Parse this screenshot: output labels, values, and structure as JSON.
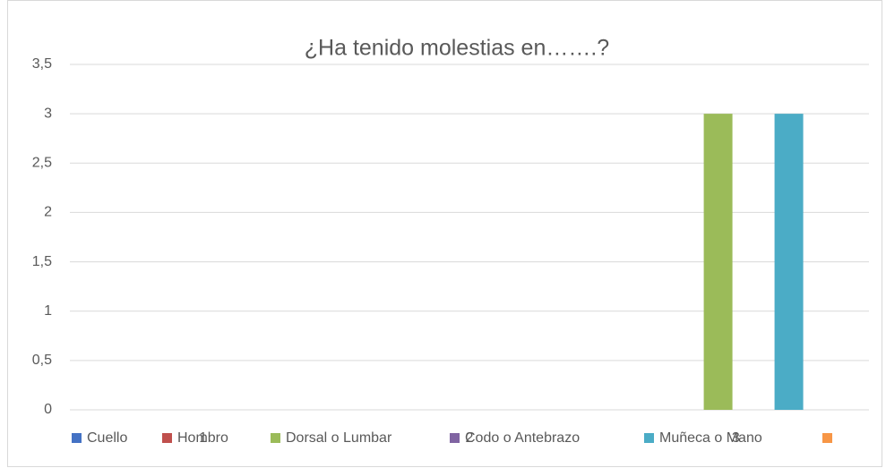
{
  "chart_data": {
    "type": "bar",
    "title": "¿Ha tenido molestias en…….?",
    "categories": [
      "1",
      "2",
      "3"
    ],
    "series": [
      {
        "name": "Cuello",
        "color": "#4472c4",
        "values": [
          0,
          0,
          0
        ]
      },
      {
        "name": "Hombro",
        "color": "#c0504d",
        "values": [
          0,
          0,
          0
        ]
      },
      {
        "name": "Dorsal o Lumbar",
        "color": "#9bbb59",
        "values": [
          0,
          0,
          3
        ]
      },
      {
        "name": "Codo o Antebrazo",
        "color": "#8064a2",
        "values": [
          0,
          0,
          0
        ]
      },
      {
        "name": "Muñeca o Mano",
        "color": "#4bacc6",
        "values": [
          0,
          0,
          3
        ]
      },
      {
        "name": null,
        "color": "#f79646",
        "values": [
          0,
          0,
          0
        ]
      }
    ],
    "ylim": [
      0,
      3.5
    ],
    "yticks": [
      0,
      {
        "value": 0.5,
        "label": "0,5"
      },
      1,
      {
        "value": 1.5,
        "label": "1,5"
      },
      2,
      {
        "value": 2.5,
        "label": "2,5"
      },
      3,
      {
        "value": 3.5,
        "label": "3,5"
      }
    ],
    "grid": true,
    "legend": "bottom"
  }
}
